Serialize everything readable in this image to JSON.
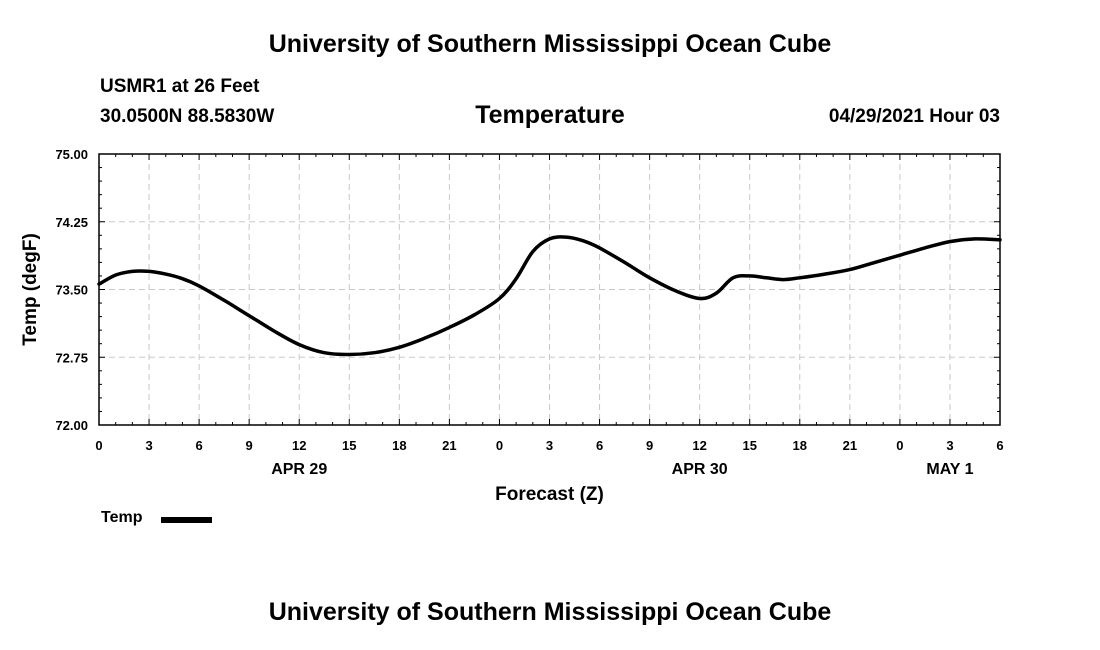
{
  "header": {
    "title": "University of Southern Mississippi Ocean Cube",
    "station": "USMR1 at 26 Feet",
    "coords": "30.0500N  88.5830W",
    "variable": "Temperature",
    "datetime": "04/29/2021 Hour 03"
  },
  "footer": {
    "title": "University of Southern Mississippi Ocean Cube"
  },
  "legend": {
    "label": "Temp",
    "color": "#000000"
  },
  "chart_data": {
    "type": "line",
    "title": "Temperature",
    "xlabel": "Forecast (Z)",
    "ylabel": "Temp (degF)",
    "xlim": [
      0,
      54
    ],
    "ylim": [
      72.0,
      75.0
    ],
    "grid": true,
    "x_tick_hours": [
      0,
      3,
      6,
      9,
      12,
      15,
      18,
      21,
      24,
      27,
      30,
      33,
      36,
      39,
      42,
      45,
      48,
      51,
      54
    ],
    "x_tick_labels": [
      "0",
      "3",
      "6",
      "9",
      "12",
      "15",
      "18",
      "21",
      "0",
      "3",
      "6",
      "9",
      "12",
      "15",
      "18",
      "21",
      "0",
      "3",
      "6"
    ],
    "date_labels": [
      {
        "hour": 12,
        "label": "APR 29"
      },
      {
        "hour": 36,
        "label": "APR 30"
      },
      {
        "hour": 51,
        "label": "MAY 1"
      }
    ],
    "y_ticks": [
      72.0,
      72.75,
      73.5,
      74.25,
      75.0
    ],
    "y_tick_labels": [
      "72.00",
      "72.75",
      "73.50",
      "74.25",
      "75.00"
    ],
    "series": [
      {
        "name": "Temp",
        "x": [
          0,
          1,
          2,
          3,
          4,
          5,
          6,
          7.5,
          9,
          10.5,
          12,
          13.5,
          15,
          16.5,
          18,
          19.5,
          21,
          22.5,
          24,
          25,
          26,
          27,
          28,
          29,
          30,
          31.5,
          33,
          34.5,
          36,
          37,
          38,
          39,
          40,
          41,
          42,
          43.5,
          45,
          46.5,
          48,
          49.5,
          51,
          52.5,
          54
        ],
        "values": [
          73.56,
          73.66,
          73.7,
          73.7,
          73.67,
          73.62,
          73.54,
          73.38,
          73.21,
          73.04,
          72.89,
          72.8,
          72.78,
          72.8,
          72.86,
          72.96,
          73.08,
          73.22,
          73.4,
          73.62,
          73.92,
          74.06,
          74.08,
          74.04,
          73.96,
          73.8,
          73.63,
          73.49,
          73.4,
          73.46,
          73.63,
          73.65,
          73.63,
          73.61,
          73.63,
          73.67,
          73.72,
          73.8,
          73.88,
          73.96,
          74.03,
          74.06,
          74.05
        ]
      }
    ]
  }
}
